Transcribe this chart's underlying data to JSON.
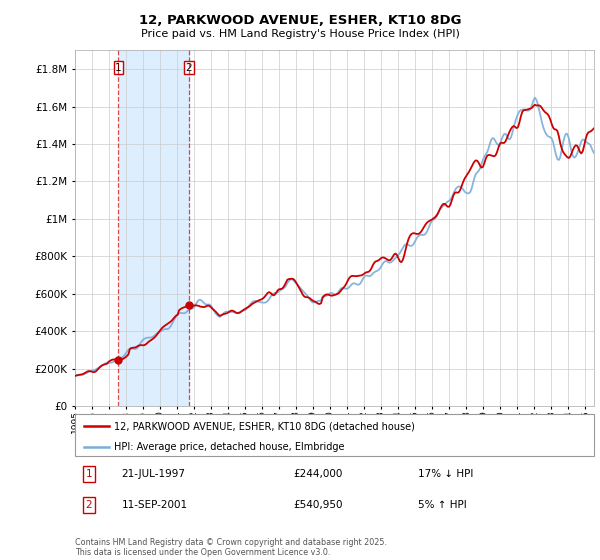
{
  "title1": "12, PARKWOOD AVENUE, ESHER, KT10 8DG",
  "title2": "Price paid vs. HM Land Registry's House Price Index (HPI)",
  "legend_label1": "12, PARKWOOD AVENUE, ESHER, KT10 8DG (detached house)",
  "legend_label2": "HPI: Average price, detached house, Elmbridge",
  "sale1_date": "21-JUL-1997",
  "sale1_price": "£244,000",
  "sale1_hpi": "17% ↓ HPI",
  "sale2_date": "11-SEP-2001",
  "sale2_price": "£540,950",
  "sale2_hpi": "5% ↑ HPI",
  "footer": "Contains HM Land Registry data © Crown copyright and database right 2025.\nThis data is licensed under the Open Government Licence v3.0.",
  "red_color": "#cc0000",
  "blue_color": "#7aaddb",
  "shade_color": "#ddeeff",
  "ylim_max": 1900000,
  "sale1_year": 1997.55,
  "sale1_val": 244000,
  "sale2_year": 2001.7,
  "sale2_val": 540950
}
